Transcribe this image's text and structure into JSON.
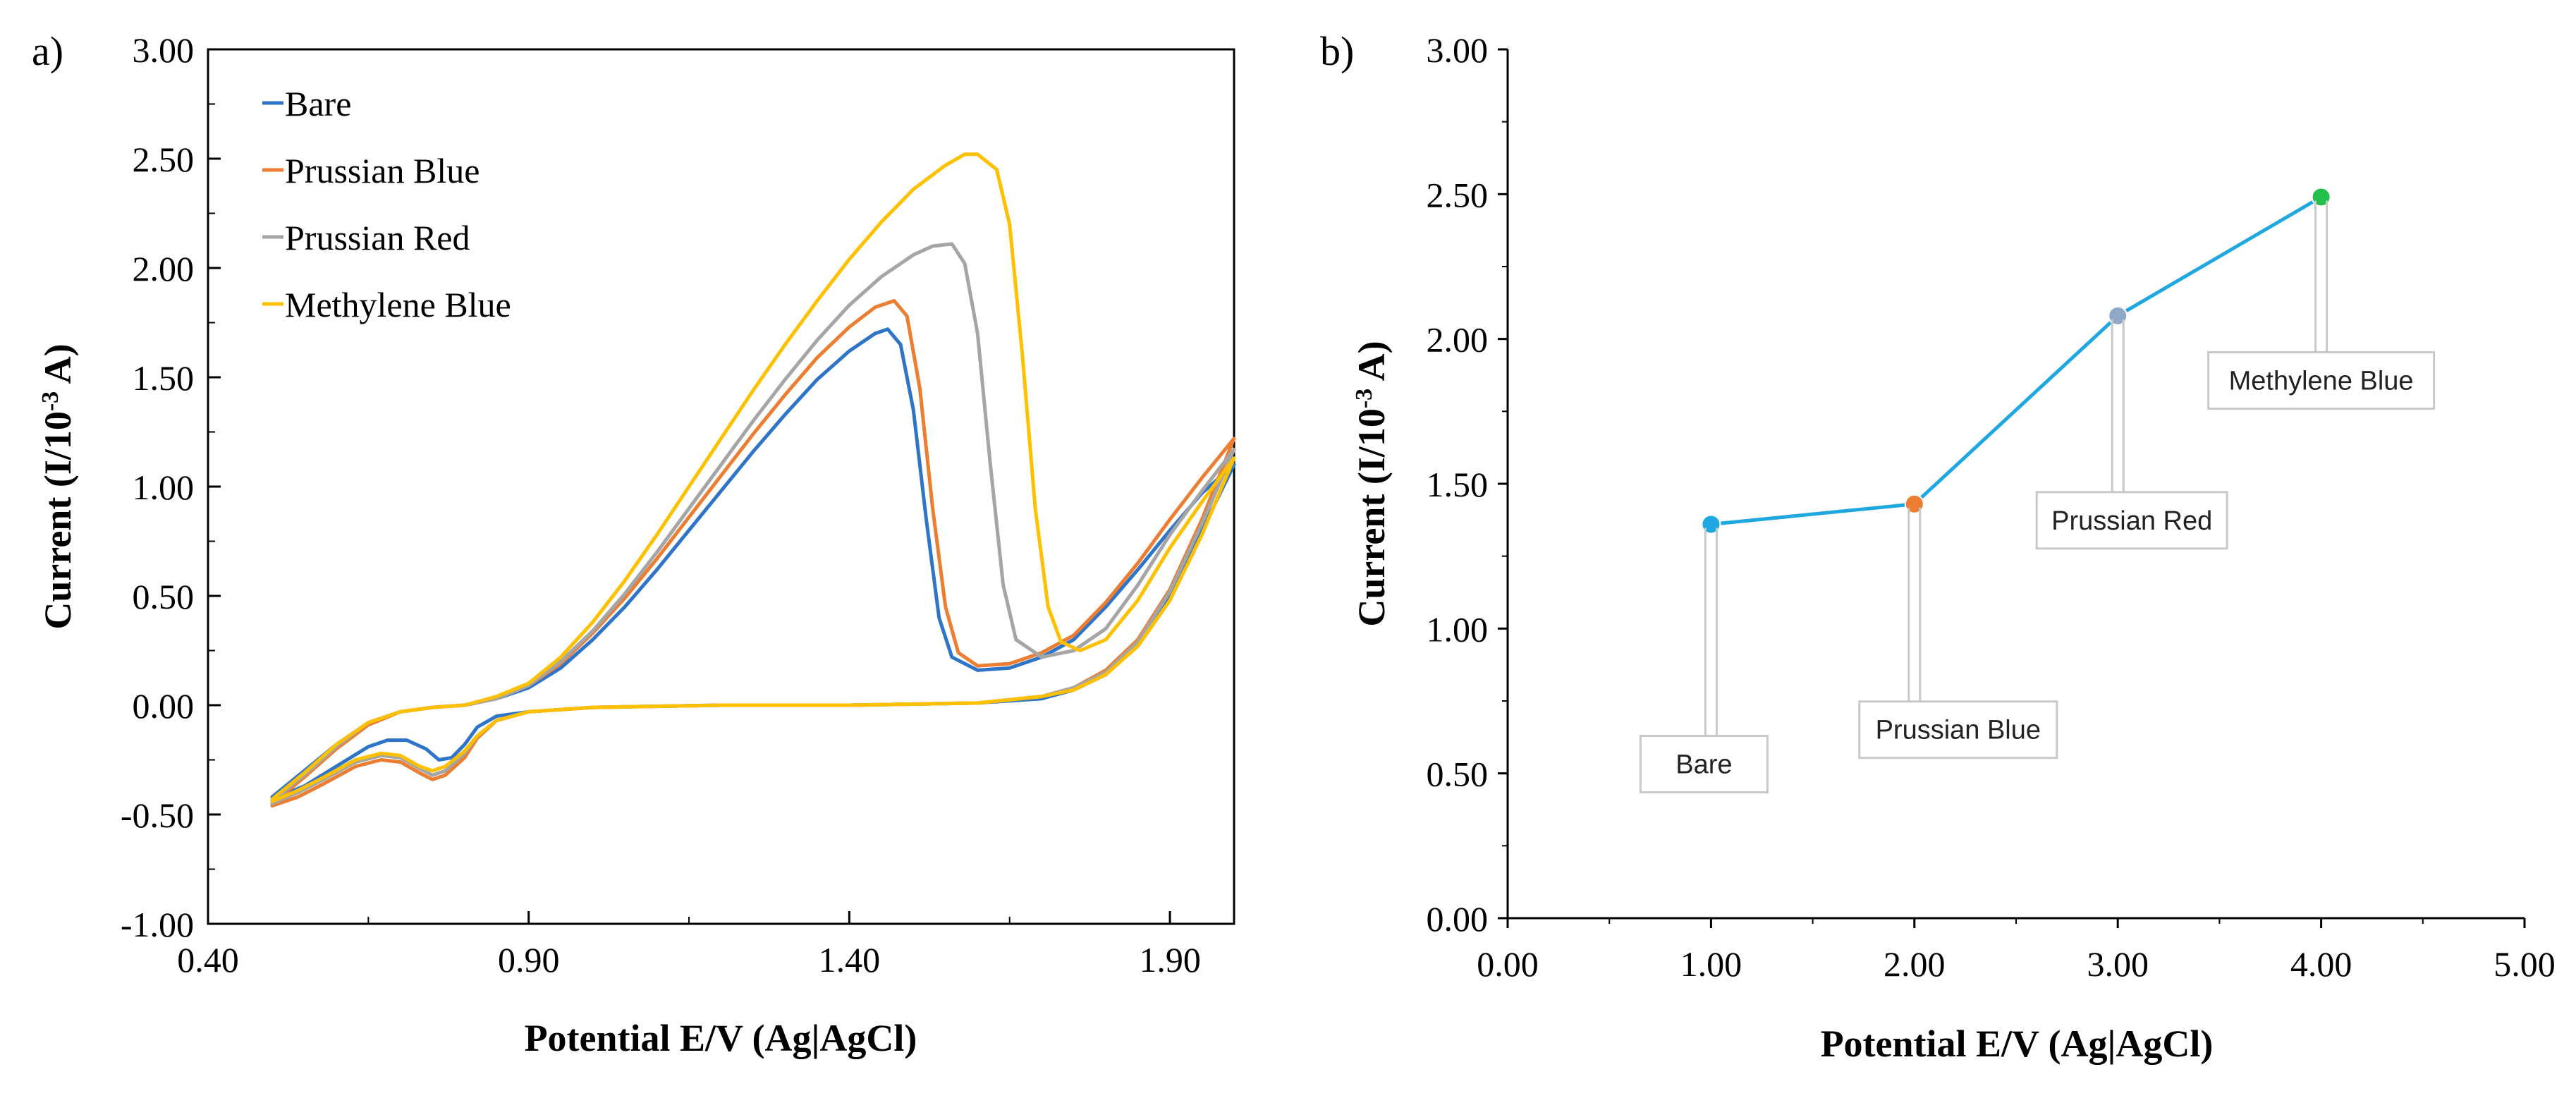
{
  "panel_labels": {
    "a": "a)",
    "b": "b)"
  },
  "colors": {
    "bare": "#2E75C9",
    "prussian_blue": "#ED7D31",
    "prussian_red": "#A5A5A5",
    "methylene_blue": "#FFC000",
    "line_b": "#1FA7E1",
    "marker_bare": "#1FA7E1",
    "marker_prussian_blue": "#ED7D31",
    "marker_prussian_red": "#8FA8C8",
    "marker_methylene_blue": "#22C04A",
    "callout_border": "#C8C8C8"
  },
  "chart_data": [
    {
      "id": "a",
      "type": "line",
      "title": "",
      "xlabel": "Potential E/V (Ag|AgCl)",
      "ylabel_main": "Current (I/10",
      "ylabel_sup": "-3",
      "ylabel_end": " A)",
      "xlim": [
        0.4,
        2.0
      ],
      "ylim": [
        -1.0,
        3.0
      ],
      "x_ticks": [
        0.4,
        0.9,
        1.4,
        1.9
      ],
      "x_tick_labels": [
        "0.40",
        "0.90",
        "1.40",
        "1.90"
      ],
      "y_ticks": [
        -1.0,
        -0.5,
        0.0,
        0.5,
        1.0,
        1.5,
        2.0,
        2.5,
        3.0
      ],
      "y_tick_labels": [
        "-1.00",
        "-0.50",
        "0.00",
        "0.50",
        "1.00",
        "1.50",
        "2.00",
        "2.50",
        "3.00"
      ],
      "legend_position": "top-left",
      "series": [
        {
          "name": "Bare",
          "color_key": "bare",
          "points": [
            [
              0.5,
              -0.42
            ],
            [
              0.55,
              -0.3
            ],
            [
              0.6,
              -0.18
            ],
            [
              0.65,
              -0.08
            ],
            [
              0.7,
              -0.03
            ],
            [
              0.75,
              -0.01
            ],
            [
              0.8,
              0.0
            ],
            [
              0.85,
              0.03
            ],
            [
              0.9,
              0.08
            ],
            [
              0.95,
              0.17
            ],
            [
              1.0,
              0.3
            ],
            [
              1.05,
              0.45
            ],
            [
              1.1,
              0.62
            ],
            [
              1.15,
              0.8
            ],
            [
              1.2,
              0.98
            ],
            [
              1.25,
              1.16
            ],
            [
              1.3,
              1.33
            ],
            [
              1.35,
              1.49
            ],
            [
              1.4,
              1.62
            ],
            [
              1.44,
              1.7
            ],
            [
              1.46,
              1.72
            ],
            [
              1.48,
              1.65
            ],
            [
              1.5,
              1.35
            ],
            [
              1.52,
              0.85
            ],
            [
              1.54,
              0.4
            ],
            [
              1.56,
              0.22
            ],
            [
              1.6,
              0.16
            ],
            [
              1.65,
              0.17
            ],
            [
              1.7,
              0.22
            ],
            [
              1.75,
              0.3
            ],
            [
              1.8,
              0.45
            ],
            [
              1.85,
              0.62
            ],
            [
              1.9,
              0.8
            ],
            [
              1.95,
              0.97
            ],
            [
              2.0,
              1.1
            ],
            [
              1.95,
              0.8
            ],
            [
              1.9,
              0.5
            ],
            [
              1.85,
              0.28
            ],
            [
              1.8,
              0.14
            ],
            [
              1.75,
              0.07
            ],
            [
              1.7,
              0.03
            ],
            [
              1.6,
              0.01
            ],
            [
              1.4,
              0.0
            ],
            [
              1.2,
              0.0
            ],
            [
              1.0,
              -0.01
            ],
            [
              0.9,
              -0.03
            ],
            [
              0.85,
              -0.05
            ],
            [
              0.82,
              -0.1
            ],
            [
              0.8,
              -0.18
            ],
            [
              0.78,
              -0.24
            ],
            [
              0.76,
              -0.25
            ],
            [
              0.74,
              -0.2
            ],
            [
              0.71,
              -0.16
            ],
            [
              0.68,
              -0.16
            ],
            [
              0.65,
              -0.19
            ],
            [
              0.6,
              -0.28
            ],
            [
              0.55,
              -0.37
            ],
            [
              0.5,
              -0.43
            ]
          ]
        },
        {
          "name": "Prussian Blue",
          "color_key": "prussian_blue",
          "points": [
            [
              0.5,
              -0.45
            ],
            [
              0.55,
              -0.33
            ],
            [
              0.6,
              -0.2
            ],
            [
              0.65,
              -0.09
            ],
            [
              0.7,
              -0.03
            ],
            [
              0.75,
              -0.01
            ],
            [
              0.8,
              0.0
            ],
            [
              0.85,
              0.03
            ],
            [
              0.9,
              0.09
            ],
            [
              0.95,
              0.19
            ],
            [
              1.0,
              0.33
            ],
            [
              1.05,
              0.49
            ],
            [
              1.1,
              0.67
            ],
            [
              1.15,
              0.86
            ],
            [
              1.2,
              1.05
            ],
            [
              1.25,
              1.24
            ],
            [
              1.3,
              1.42
            ],
            [
              1.35,
              1.59
            ],
            [
              1.4,
              1.73
            ],
            [
              1.44,
              1.82
            ],
            [
              1.47,
              1.85
            ],
            [
              1.49,
              1.78
            ],
            [
              1.51,
              1.45
            ],
            [
              1.53,
              0.9
            ],
            [
              1.55,
              0.45
            ],
            [
              1.57,
              0.24
            ],
            [
              1.6,
              0.18
            ],
            [
              1.65,
              0.19
            ],
            [
              1.7,
              0.24
            ],
            [
              1.75,
              0.32
            ],
            [
              1.8,
              0.47
            ],
            [
              1.85,
              0.65
            ],
            [
              1.9,
              0.85
            ],
            [
              1.95,
              1.04
            ],
            [
              2.0,
              1.22
            ],
            [
              1.95,
              0.85
            ],
            [
              1.9,
              0.53
            ],
            [
              1.85,
              0.3
            ],
            [
              1.8,
              0.16
            ],
            [
              1.75,
              0.08
            ],
            [
              1.7,
              0.04
            ],
            [
              1.6,
              0.01
            ],
            [
              1.4,
              0.0
            ],
            [
              1.2,
              0.0
            ],
            [
              1.0,
              -0.01
            ],
            [
              0.9,
              -0.03
            ],
            [
              0.85,
              -0.07
            ],
            [
              0.82,
              -0.15
            ],
            [
              0.8,
              -0.24
            ],
            [
              0.77,
              -0.32
            ],
            [
              0.75,
              -0.34
            ],
            [
              0.73,
              -0.31
            ],
            [
              0.7,
              -0.26
            ],
            [
              0.67,
              -0.25
            ],
            [
              0.63,
              -0.28
            ],
            [
              0.58,
              -0.36
            ],
            [
              0.54,
              -0.42
            ],
            [
              0.5,
              -0.46
            ]
          ]
        },
        {
          "name": "Prussian Red",
          "color_key": "prussian_red",
          "points": [
            [
              0.5,
              -0.44
            ],
            [
              0.55,
              -0.32
            ],
            [
              0.6,
              -0.19
            ],
            [
              0.65,
              -0.08
            ],
            [
              0.7,
              -0.03
            ],
            [
              0.75,
              -0.01
            ],
            [
              0.8,
              0.0
            ],
            [
              0.85,
              0.03
            ],
            [
              0.9,
              0.09
            ],
            [
              0.95,
              0.2
            ],
            [
              1.0,
              0.34
            ],
            [
              1.05,
              0.51
            ],
            [
              1.1,
              0.7
            ],
            [
              1.15,
              0.9
            ],
            [
              1.2,
              1.1
            ],
            [
              1.25,
              1.3
            ],
            [
              1.3,
              1.49
            ],
            [
              1.35,
              1.67
            ],
            [
              1.4,
              1.83
            ],
            [
              1.45,
              1.96
            ],
            [
              1.5,
              2.06
            ],
            [
              1.53,
              2.1
            ],
            [
              1.56,
              2.11
            ],
            [
              1.58,
              2.02
            ],
            [
              1.6,
              1.7
            ],
            [
              1.62,
              1.1
            ],
            [
              1.64,
              0.55
            ],
            [
              1.66,
              0.3
            ],
            [
              1.7,
              0.22
            ],
            [
              1.75,
              0.25
            ],
            [
              1.8,
              0.35
            ],
            [
              1.85,
              0.55
            ],
            [
              1.9,
              0.78
            ],
            [
              1.95,
              0.98
            ],
            [
              2.0,
              1.17
            ],
            [
              1.95,
              0.83
            ],
            [
              1.9,
              0.52
            ],
            [
              1.85,
              0.29
            ],
            [
              1.8,
              0.15
            ],
            [
              1.75,
              0.08
            ],
            [
              1.7,
              0.04
            ],
            [
              1.6,
              0.01
            ],
            [
              1.4,
              0.0
            ],
            [
              1.2,
              0.0
            ],
            [
              1.0,
              -0.01
            ],
            [
              0.9,
              -0.03
            ],
            [
              0.85,
              -0.07
            ],
            [
              0.82,
              -0.14
            ],
            [
              0.8,
              -0.22
            ],
            [
              0.77,
              -0.3
            ],
            [
              0.75,
              -0.32
            ],
            [
              0.73,
              -0.29
            ],
            [
              0.7,
              -0.24
            ],
            [
              0.67,
              -0.23
            ],
            [
              0.63,
              -0.26
            ],
            [
              0.58,
              -0.34
            ],
            [
              0.54,
              -0.4
            ],
            [
              0.5,
              -0.45
            ]
          ]
        },
        {
          "name": "Methylene Blue",
          "color_key": "methylene_blue",
          "points": [
            [
              0.5,
              -0.43
            ],
            [
              0.55,
              -0.31
            ],
            [
              0.6,
              -0.18
            ],
            [
              0.65,
              -0.08
            ],
            [
              0.7,
              -0.03
            ],
            [
              0.75,
              -0.01
            ],
            [
              0.8,
              0.0
            ],
            [
              0.85,
              0.04
            ],
            [
              0.9,
              0.1
            ],
            [
              0.95,
              0.22
            ],
            [
              1.0,
              0.38
            ],
            [
              1.05,
              0.57
            ],
            [
              1.1,
              0.78
            ],
            [
              1.15,
              1.0
            ],
            [
              1.2,
              1.22
            ],
            [
              1.25,
              1.44
            ],
            [
              1.3,
              1.65
            ],
            [
              1.35,
              1.85
            ],
            [
              1.4,
              2.04
            ],
            [
              1.45,
              2.21
            ],
            [
              1.5,
              2.36
            ],
            [
              1.55,
              2.47
            ],
            [
              1.58,
              2.52
            ],
            [
              1.6,
              2.52
            ],
            [
              1.63,
              2.45
            ],
            [
              1.65,
              2.2
            ],
            [
              1.67,
              1.6
            ],
            [
              1.69,
              0.9
            ],
            [
              1.71,
              0.45
            ],
            [
              1.73,
              0.29
            ],
            [
              1.76,
              0.25
            ],
            [
              1.8,
              0.3
            ],
            [
              1.85,
              0.48
            ],
            [
              1.9,
              0.72
            ],
            [
              1.95,
              0.93
            ],
            [
              2.0,
              1.13
            ],
            [
              1.95,
              0.78
            ],
            [
              1.9,
              0.48
            ],
            [
              1.85,
              0.27
            ],
            [
              1.8,
              0.14
            ],
            [
              1.75,
              0.07
            ],
            [
              1.7,
              0.04
            ],
            [
              1.6,
              0.01
            ],
            [
              1.4,
              0.0
            ],
            [
              1.2,
              0.0
            ],
            [
              1.0,
              -0.01
            ],
            [
              0.9,
              -0.03
            ],
            [
              0.85,
              -0.07
            ],
            [
              0.82,
              -0.14
            ],
            [
              0.8,
              -0.21
            ],
            [
              0.77,
              -0.28
            ],
            [
              0.75,
              -0.3
            ],
            [
              0.73,
              -0.28
            ],
            [
              0.7,
              -0.23
            ],
            [
              0.67,
              -0.22
            ],
            [
              0.63,
              -0.25
            ],
            [
              0.58,
              -0.33
            ],
            [
              0.54,
              -0.39
            ],
            [
              0.5,
              -0.44
            ]
          ]
        }
      ]
    },
    {
      "id": "b",
      "type": "line",
      "title": "",
      "xlabel": "Potential E/V (Ag|AgCl)",
      "ylabel_main": "Current (I/10",
      "ylabel_sup": "-3",
      "ylabel_end": " A)",
      "xlim": [
        0.0,
        5.0
      ],
      "ylim": [
        0.0,
        3.0
      ],
      "x_ticks": [
        0,
        1,
        2,
        3,
        4,
        5
      ],
      "x_tick_labels": [
        "0.00",
        "1.00",
        "2.00",
        "3.00",
        "4.00",
        "5.00"
      ],
      "y_ticks": [
        0.0,
        0.5,
        1.0,
        1.5,
        2.0,
        2.5,
        3.0
      ],
      "y_tick_labels": [
        "0.00",
        "0.50",
        "1.00",
        "1.50",
        "2.00",
        "2.50",
        "3.00"
      ],
      "x": [
        1.0,
        2.0,
        3.0,
        4.0
      ],
      "y": [
        1.36,
        1.43,
        2.08,
        2.49
      ],
      "point_labels": [
        "Bare",
        "Prussian Blue",
        "Prussian Red",
        "Methylene Blue"
      ],
      "marker_color_keys": [
        "marker_bare",
        "marker_prussian_blue",
        "marker_prussian_red",
        "marker_methylene_blue"
      ],
      "line_color_key": "line_b"
    }
  ]
}
